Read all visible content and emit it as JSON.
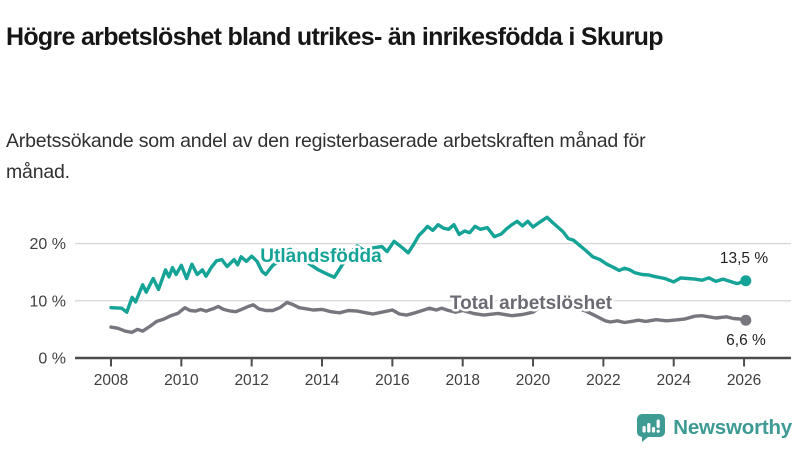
{
  "header": {
    "title": "Högre arbetslöshet bland utrikes- än inrikesfödda i Skurup",
    "subtitle": "Arbetssökande som andel av den registerbaserade arbetskraften månad för månad."
  },
  "colors": {
    "teal_series": "#14a396",
    "gray_series": "#76767e",
    "gray_series_label": "#6b6b74",
    "grid": "#d9d9d9",
    "axis": "#4d4d4d",
    "tick_text": "#3f3f3f",
    "value_label_text": "#222222",
    "brand_teal": "#3d9b94"
  },
  "footer": {
    "brand": "Newsworthy",
    "logo_icon": "newsworthy-speech-bubble-bar-chart-icon"
  },
  "chart_data": {
    "type": "line",
    "unit": "%",
    "grid": "horizontal",
    "x_range": [
      2008,
      2026.05
    ],
    "y_range": [
      0,
      26
    ],
    "y_ticks": [
      {
        "value": 0,
        "label": "0 %"
      },
      {
        "value": 10,
        "label": "10 %"
      },
      {
        "value": 20,
        "label": "20 %"
      }
    ],
    "x_ticks": [
      {
        "value": 2008,
        "label": "2008"
      },
      {
        "value": 2010,
        "label": "2010"
      },
      {
        "value": 2012,
        "label": "2012"
      },
      {
        "value": 2014,
        "label": "2014"
      },
      {
        "value": 2016,
        "label": "2016"
      },
      {
        "value": 2018,
        "label": "2018"
      },
      {
        "value": 2020,
        "label": "2020"
      },
      {
        "value": 2022,
        "label": "2022"
      },
      {
        "value": 2024,
        "label": "2024"
      },
      {
        "value": 2026,
        "label": "2026"
      }
    ],
    "series": [
      {
        "name": "Total arbetslöshet",
        "color": "#76767e",
        "end_label": "6,6 %",
        "end_value": 6.6,
        "points": [
          [
            2008.0,
            5.4
          ],
          [
            2008.2,
            5.2
          ],
          [
            2008.4,
            4.7
          ],
          [
            2008.6,
            4.5
          ],
          [
            2008.75,
            5.0
          ],
          [
            2008.9,
            4.7
          ],
          [
            2009.1,
            5.5
          ],
          [
            2009.3,
            6.4
          ],
          [
            2009.5,
            6.8
          ],
          [
            2009.7,
            7.4
          ],
          [
            2009.9,
            7.8
          ],
          [
            2010.1,
            8.8
          ],
          [
            2010.25,
            8.3
          ],
          [
            2010.4,
            8.2
          ],
          [
            2010.55,
            8.5
          ],
          [
            2010.7,
            8.2
          ],
          [
            2010.9,
            8.6
          ],
          [
            2011.05,
            9.0
          ],
          [
            2011.2,
            8.5
          ],
          [
            2011.4,
            8.2
          ],
          [
            2011.55,
            8.1
          ],
          [
            2011.75,
            8.6
          ],
          [
            2011.9,
            9.0
          ],
          [
            2012.05,
            9.3
          ],
          [
            2012.2,
            8.6
          ],
          [
            2012.4,
            8.3
          ],
          [
            2012.6,
            8.3
          ],
          [
            2012.8,
            8.8
          ],
          [
            2013.0,
            9.7
          ],
          [
            2013.15,
            9.4
          ],
          [
            2013.35,
            8.8
          ],
          [
            2013.55,
            8.6
          ],
          [
            2013.75,
            8.4
          ],
          [
            2014.0,
            8.5
          ],
          [
            2014.25,
            8.1
          ],
          [
            2014.5,
            7.9
          ],
          [
            2014.75,
            8.3
          ],
          [
            2015.0,
            8.2
          ],
          [
            2015.25,
            7.9
          ],
          [
            2015.45,
            7.7
          ],
          [
            2015.7,
            8.0
          ],
          [
            2016.0,
            8.4
          ],
          [
            2016.2,
            7.7
          ],
          [
            2016.4,
            7.5
          ],
          [
            2016.65,
            7.9
          ],
          [
            2016.85,
            8.3
          ],
          [
            2017.05,
            8.7
          ],
          [
            2017.25,
            8.4
          ],
          [
            2017.4,
            8.7
          ],
          [
            2017.6,
            8.3
          ],
          [
            2017.8,
            8.0
          ],
          [
            2018.0,
            8.3
          ],
          [
            2018.3,
            7.8
          ],
          [
            2018.6,
            7.5
          ],
          [
            2019.0,
            7.8
          ],
          [
            2019.4,
            7.4
          ],
          [
            2019.7,
            7.6
          ],
          [
            2020.0,
            8.0
          ],
          [
            2020.3,
            9.3
          ],
          [
            2020.6,
            9.7
          ],
          [
            2020.9,
            9.4
          ],
          [
            2021.2,
            8.9
          ],
          [
            2021.5,
            8.2
          ],
          [
            2021.8,
            7.3
          ],
          [
            2022.05,
            6.5
          ],
          [
            2022.2,
            6.3
          ],
          [
            2022.4,
            6.5
          ],
          [
            2022.6,
            6.2
          ],
          [
            2022.8,
            6.4
          ],
          [
            2023.0,
            6.6
          ],
          [
            2023.2,
            6.4
          ],
          [
            2023.5,
            6.7
          ],
          [
            2023.8,
            6.5
          ],
          [
            2024.0,
            6.6
          ],
          [
            2024.3,
            6.8
          ],
          [
            2024.6,
            7.3
          ],
          [
            2024.8,
            7.4
          ],
          [
            2025.0,
            7.2
          ],
          [
            2025.2,
            7.0
          ],
          [
            2025.5,
            7.2
          ],
          [
            2025.7,
            6.9
          ],
          [
            2025.9,
            6.8
          ],
          [
            2026.05,
            6.6
          ]
        ]
      },
      {
        "name": "Utlandsfödda",
        "color": "#14a396",
        "end_label": "13,5 %",
        "end_value": 13.5,
        "points": [
          [
            2008.0,
            8.8
          ],
          [
            2008.3,
            8.7
          ],
          [
            2008.45,
            8.0
          ],
          [
            2008.6,
            10.6
          ],
          [
            2008.7,
            9.8
          ],
          [
            2008.9,
            12.8
          ],
          [
            2009.0,
            11.5
          ],
          [
            2009.2,
            13.9
          ],
          [
            2009.35,
            12.0
          ],
          [
            2009.55,
            15.4
          ],
          [
            2009.65,
            14.2
          ],
          [
            2009.75,
            15.8
          ],
          [
            2009.85,
            14.6
          ],
          [
            2010.0,
            16.2
          ],
          [
            2010.15,
            13.9
          ],
          [
            2010.3,
            16.4
          ],
          [
            2010.45,
            14.6
          ],
          [
            2010.6,
            15.4
          ],
          [
            2010.7,
            14.3
          ],
          [
            2010.85,
            15.8
          ],
          [
            2011.0,
            17.0
          ],
          [
            2011.15,
            17.2
          ],
          [
            2011.3,
            16.0
          ],
          [
            2011.5,
            17.2
          ],
          [
            2011.6,
            16.3
          ],
          [
            2011.7,
            17.7
          ],
          [
            2011.85,
            16.9
          ],
          [
            2012.0,
            17.8
          ],
          [
            2012.15,
            16.9
          ],
          [
            2012.3,
            15.1
          ],
          [
            2012.4,
            14.6
          ],
          [
            2012.6,
            16.2
          ],
          [
            2012.8,
            17.0
          ],
          [
            2013.0,
            18.8
          ],
          [
            2013.1,
            19.0
          ],
          [
            2013.3,
            17.8
          ],
          [
            2013.5,
            17.0
          ],
          [
            2013.7,
            16.2
          ],
          [
            2013.9,
            15.4
          ],
          [
            2014.1,
            14.8
          ],
          [
            2014.35,
            14.1
          ],
          [
            2014.6,
            16.5
          ],
          [
            2014.8,
            18.3
          ],
          [
            2015.0,
            19.6
          ],
          [
            2015.2,
            18.8
          ],
          [
            2015.4,
            19.2
          ],
          [
            2015.7,
            19.5
          ],
          [
            2015.85,
            18.6
          ],
          [
            2016.05,
            20.4
          ],
          [
            2016.3,
            19.2
          ],
          [
            2016.45,
            18.4
          ],
          [
            2016.6,
            19.8
          ],
          [
            2016.75,
            21.4
          ],
          [
            2016.9,
            22.3
          ],
          [
            2017.0,
            23.0
          ],
          [
            2017.15,
            22.3
          ],
          [
            2017.3,
            23.3
          ],
          [
            2017.45,
            22.7
          ],
          [
            2017.6,
            22.5
          ],
          [
            2017.75,
            23.3
          ],
          [
            2017.9,
            21.6
          ],
          [
            2018.05,
            22.2
          ],
          [
            2018.2,
            21.9
          ],
          [
            2018.35,
            23.0
          ],
          [
            2018.5,
            22.5
          ],
          [
            2018.7,
            22.8
          ],
          [
            2018.9,
            21.2
          ],
          [
            2019.1,
            21.7
          ],
          [
            2019.25,
            22.6
          ],
          [
            2019.4,
            23.3
          ],
          [
            2019.55,
            23.9
          ],
          [
            2019.7,
            23.1
          ],
          [
            2019.85,
            23.9
          ],
          [
            2020.0,
            22.9
          ],
          [
            2020.2,
            23.8
          ],
          [
            2020.4,
            24.6
          ],
          [
            2020.55,
            23.7
          ],
          [
            2020.7,
            22.9
          ],
          [
            2020.85,
            22.1
          ],
          [
            2021.0,
            20.9
          ],
          [
            2021.15,
            20.6
          ],
          [
            2021.3,
            19.8
          ],
          [
            2021.5,
            18.8
          ],
          [
            2021.7,
            17.7
          ],
          [
            2021.9,
            17.2
          ],
          [
            2022.1,
            16.4
          ],
          [
            2022.3,
            15.8
          ],
          [
            2022.45,
            15.3
          ],
          [
            2022.6,
            15.7
          ],
          [
            2022.75,
            15.4
          ],
          [
            2022.9,
            14.9
          ],
          [
            2023.1,
            14.6
          ],
          [
            2023.3,
            14.5
          ],
          [
            2023.5,
            14.2
          ],
          [
            2023.75,
            13.9
          ],
          [
            2024.0,
            13.3
          ],
          [
            2024.2,
            14.0
          ],
          [
            2024.4,
            13.9
          ],
          [
            2024.6,
            13.8
          ],
          [
            2024.8,
            13.6
          ],
          [
            2025.0,
            14.0
          ],
          [
            2025.2,
            13.4
          ],
          [
            2025.4,
            13.8
          ],
          [
            2025.6,
            13.4
          ],
          [
            2025.8,
            13.0
          ],
          [
            2026.05,
            13.5
          ]
        ]
      }
    ]
  }
}
